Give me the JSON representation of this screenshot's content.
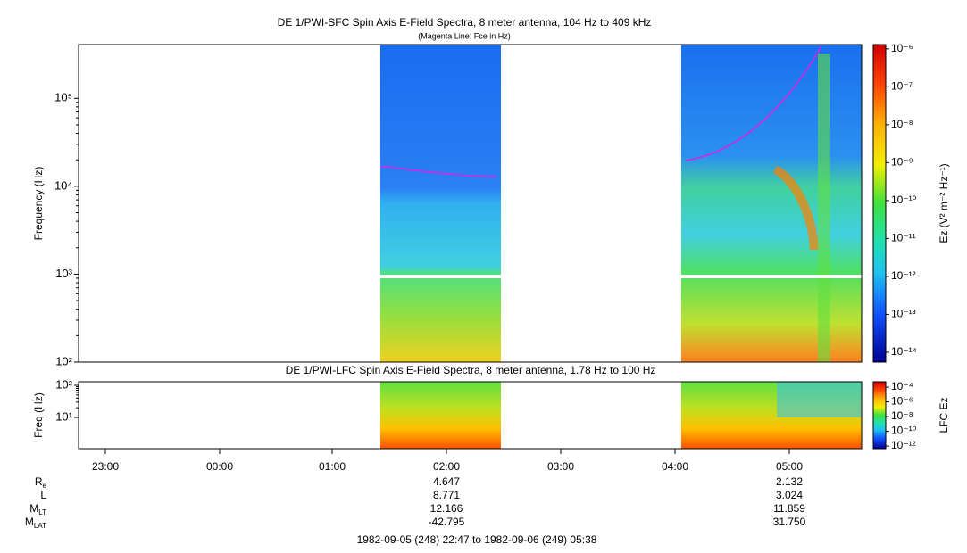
{
  "chart_data": [
    {
      "type": "spectrogram",
      "title": "DE 1/PWI-SFC  Spin Axis E-Field Spectra, 8 meter antenna, 104 Hz to 409 kHz",
      "subtitle": "(Magenta Line: Fce in Hz)",
      "ylabel": "Frequency (Hz)",
      "log": true,
      "ylim": [
        100,
        409000
      ],
      "yticks": [
        {
          "value": 100,
          "label": "10²"
        },
        {
          "value": 1000,
          "label": "10³"
        },
        {
          "value": 10000,
          "label": "10⁴"
        },
        {
          "value": 100000,
          "label": "10⁵"
        }
      ],
      "colorbar_label": "Ez (V² m⁻² Hz⁻¹)",
      "zlim": [
        5.5e-15,
        1.3e-06
      ],
      "zticks": [
        {
          "value": 1e-06,
          "label": "10⁻⁶"
        },
        {
          "value": 1e-07,
          "label": "10⁻⁷"
        },
        {
          "value": 1e-08,
          "label": "10⁻⁸"
        },
        {
          "value": 1e-09,
          "label": "10⁻⁹"
        },
        {
          "value": 1e-10,
          "label": "10⁻¹⁰"
        },
        {
          "value": 1e-11,
          "label": "10⁻¹¹"
        },
        {
          "value": 1e-12,
          "label": "10⁻¹²"
        },
        {
          "value": 1e-13,
          "label": "10⁻¹³"
        },
        {
          "value": 1e-14,
          "label": "10⁻¹⁴"
        }
      ],
      "line_color": "#e020e0"
    },
    {
      "type": "spectrogram",
      "title": "DE 1/PWI-LFC  Spin Axis E-Field Spectra, 8 meter antenna, 1.78 Hz to 100 Hz",
      "ylabel": "Freq (Hz)",
      "log": true,
      "ylim": [
        1.07,
        129
      ],
      "yticks": [
        {
          "value": 10,
          "label": "10¹"
        },
        {
          "value": 100,
          "label": "10²"
        }
      ],
      "colorbar_label": "LFC Ez",
      "zlim": [
        4.4e-13,
        0.00054
      ],
      "zticks": [
        {
          "value": 0.0001,
          "label": "10⁻⁴"
        },
        {
          "value": 1e-06,
          "label": "10⁻⁶"
        },
        {
          "value": 1e-08,
          "label": "10⁻⁸"
        },
        {
          "value": 1e-10,
          "label": "10⁻¹⁰"
        },
        {
          "value": 1e-12,
          "label": "10⁻¹²"
        }
      ]
    }
  ],
  "time_axis": {
    "ticks": [
      "23:00",
      "00:00",
      "01:00",
      "02:00",
      "03:00",
      "04:00",
      "05:00"
    ]
  },
  "ephemeris": {
    "rows": [
      {
        "label": "R",
        "subscript": "e",
        "values": [
          "4.647",
          "2.132"
        ]
      },
      {
        "label": "L",
        "subscript": "",
        "values": [
          "8.771",
          "3.024"
        ]
      },
      {
        "label": "M",
        "subscript": "LT",
        "values": [
          "12.166",
          "11.859"
        ]
      },
      {
        "label": "M",
        "subscript": "LAT",
        "values": [
          "-42.795",
          "31.750"
        ]
      }
    ]
  },
  "footer": "1982-09-05 (248) 22:47 to 1982-09-06 (249) 05:38"
}
